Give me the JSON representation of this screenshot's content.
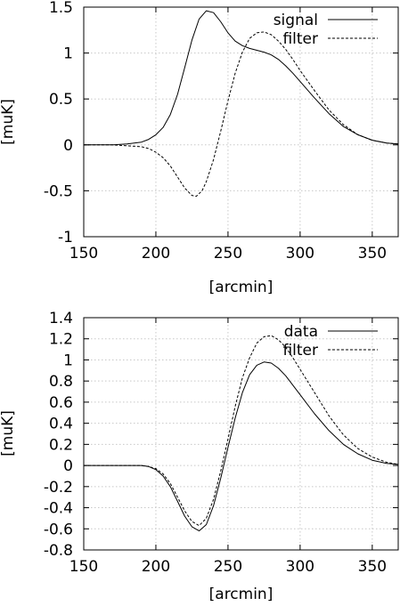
{
  "chart_data": [
    {
      "type": "line",
      "xlabel": "[arcmin]",
      "ylabel": "[muK]",
      "xlim": [
        150,
        368
      ],
      "ylim": [
        -1,
        1.5
      ],
      "xticks": [
        "150",
        "200",
        "250",
        "300",
        "350"
      ],
      "xtick_values": [
        150,
        200,
        250,
        300,
        350
      ],
      "yticks": [
        "-1",
        "-0.5",
        "0",
        "0.5",
        "1",
        "1.5"
      ],
      "ytick_values": [
        -1,
        -0.5,
        0,
        0.5,
        1,
        1.5
      ],
      "grid": true,
      "legend": "top-right",
      "series": [
        {
          "name": "signal",
          "style": "solid",
          "x": [
            150,
            170,
            180,
            190,
            195,
            200,
            205,
            210,
            215,
            220,
            225,
            230,
            235,
            240,
            245,
            250,
            255,
            260,
            265,
            270,
            275,
            280,
            285,
            290,
            295,
            300,
            310,
            320,
            330,
            340,
            350,
            360,
            368
          ],
          "y": [
            0,
            0,
            0.01,
            0.03,
            0.06,
            0.11,
            0.19,
            0.33,
            0.55,
            0.84,
            1.14,
            1.37,
            1.46,
            1.44,
            1.34,
            1.22,
            1.13,
            1.08,
            1.05,
            1.03,
            1.01,
            0.98,
            0.93,
            0.86,
            0.78,
            0.69,
            0.51,
            0.34,
            0.2,
            0.11,
            0.05,
            0.02,
            0.01
          ]
        },
        {
          "name": "filter",
          "style": "dashed",
          "x": [
            150,
            170,
            180,
            190,
            195,
            200,
            205,
            210,
            215,
            220,
            225,
            228,
            232,
            235,
            240,
            245,
            250,
            255,
            260,
            265,
            270,
            275,
            280,
            285,
            290,
            295,
            300,
            310,
            320,
            330,
            340,
            350,
            360,
            368
          ],
          "y": [
            0,
            0,
            -0.01,
            -0.02,
            -0.04,
            -0.08,
            -0.14,
            -0.23,
            -0.35,
            -0.47,
            -0.55,
            -0.56,
            -0.5,
            -0.4,
            -0.16,
            0.15,
            0.48,
            0.78,
            1.01,
            1.16,
            1.22,
            1.23,
            1.2,
            1.13,
            1.04,
            0.93,
            0.81,
            0.59,
            0.38,
            0.22,
            0.11,
            0.05,
            0.02,
            0.01
          ]
        }
      ]
    },
    {
      "type": "line",
      "xlabel": "[arcmin]",
      "ylabel": "[muK]",
      "xlim": [
        150,
        368
      ],
      "ylim": [
        -0.8,
        1.4
      ],
      "xticks": [
        "150",
        "200",
        "250",
        "300",
        "350"
      ],
      "xtick_values": [
        150,
        200,
        250,
        300,
        350
      ],
      "yticks": [
        "-0.8",
        "-0.6",
        "-0.4",
        "-0.2",
        "0",
        "0.2",
        "0.4",
        "0.6",
        "0.8",
        "1",
        "1.2",
        "1.4"
      ],
      "ytick_values": [
        -0.8,
        -0.6,
        -0.4,
        -0.2,
        0,
        0.2,
        0.4,
        0.6,
        0.8,
        1,
        1.2,
        1.4
      ],
      "grid": true,
      "legend": "top-right",
      "series": [
        {
          "name": "data",
          "style": "solid",
          "x": [
            150,
            170,
            180,
            190,
            195,
            200,
            205,
            210,
            215,
            220,
            225,
            230,
            235,
            240,
            245,
            250,
            255,
            260,
            265,
            270,
            275,
            280,
            285,
            290,
            295,
            300,
            310,
            320,
            330,
            340,
            350,
            360,
            368
          ],
          "y": [
            0,
            0,
            0,
            0,
            -0.01,
            -0.04,
            -0.1,
            -0.2,
            -0.34,
            -0.48,
            -0.58,
            -0.62,
            -0.56,
            -0.38,
            -0.12,
            0.17,
            0.45,
            0.69,
            0.86,
            0.95,
            0.98,
            0.97,
            0.92,
            0.85,
            0.76,
            0.67,
            0.49,
            0.33,
            0.2,
            0.11,
            0.05,
            0.02,
            0.01
          ]
        },
        {
          "name": "filter",
          "style": "dashed",
          "x": [
            150,
            170,
            180,
            190,
            195,
            200,
            205,
            210,
            215,
            220,
            225,
            230,
            235,
            240,
            245,
            250,
            255,
            260,
            265,
            270,
            275,
            280,
            285,
            290,
            295,
            300,
            310,
            320,
            330,
            340,
            350,
            360,
            368
          ],
          "y": [
            0,
            0,
            0,
            0,
            -0.01,
            -0.03,
            -0.08,
            -0.17,
            -0.3,
            -0.43,
            -0.53,
            -0.57,
            -0.5,
            -0.32,
            -0.05,
            0.25,
            0.56,
            0.83,
            1.02,
            1.16,
            1.22,
            1.23,
            1.19,
            1.12,
            1.02,
            0.91,
            0.69,
            0.47,
            0.29,
            0.16,
            0.08,
            0.03,
            0.01
          ]
        }
      ]
    }
  ]
}
